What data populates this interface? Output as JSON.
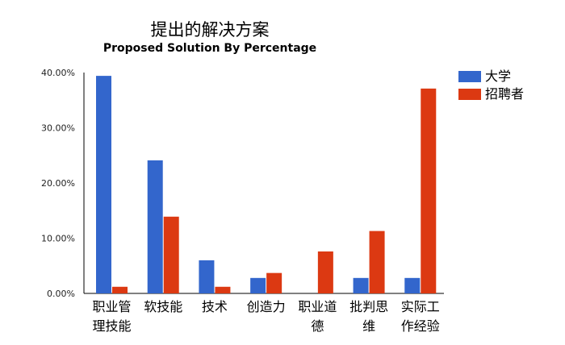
{
  "chart_data": {
    "type": "bar",
    "title": "提出的解决方案",
    "subtitle": "Proposed Solution By Percentage",
    "xlabel": "",
    "ylabel": "",
    "ylim": [
      0,
      40
    ],
    "y_ticks": [
      "0.00%",
      "10.00%",
      "20.00%",
      "30.00%",
      "40.00%"
    ],
    "categories": [
      [
        "职业管",
        "理技能"
      ],
      [
        "软技能"
      ],
      [
        "技术"
      ],
      [
        "创造力"
      ],
      [
        "职业道",
        "德"
      ],
      [
        "批判思",
        "维"
      ],
      [
        "实际工",
        "作经验"
      ]
    ],
    "series": [
      {
        "name": "大学",
        "color": "#3366cc",
        "values": [
          39.4,
          24.1,
          6.0,
          2.8,
          0.0,
          2.8,
          2.8
        ]
      },
      {
        "name": "招聘者",
        "color": "#dc3912",
        "values": [
          1.2,
          13.9,
          1.2,
          3.7,
          7.6,
          11.3,
          37.1
        ]
      }
    ],
    "grid": false,
    "legend": "right"
  }
}
